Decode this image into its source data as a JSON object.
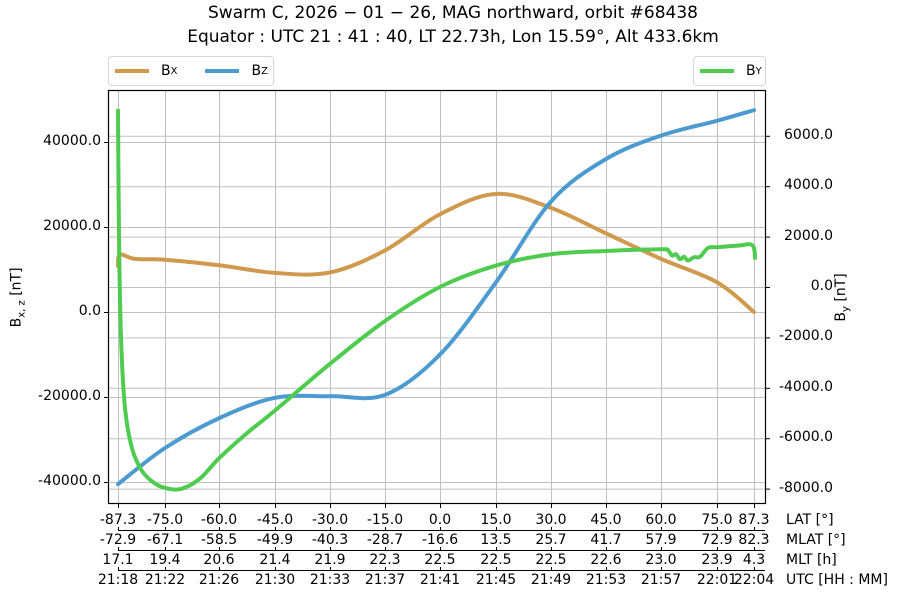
{
  "title": {
    "line1": "Swarm C,  2026 − 01 − 26,  MAG northward,  orbit #68438",
    "line2": "Equator :  UTC 21 : 41 : 40,  LT 22.73h,  Lon 15.59°,  Alt 433.6km"
  },
  "legend_left": [
    {
      "label": "B",
      "sub": "X",
      "color": "#d09a4e"
    },
    {
      "label": "B",
      "sub": "Z",
      "color": "#4b9bd0"
    }
  ],
  "legend_right": [
    {
      "label": "B",
      "sub": "Y",
      "color": "#4fcc4f"
    }
  ],
  "axes": {
    "left_label": "B",
    "left_label_sub": "x, z",
    "left_label_unit": " [nT]",
    "right_label": "B",
    "right_label_sub": "y",
    "right_label_unit": " [nT]",
    "left_ticks": [
      "40000.0",
      "20000.0",
      "0.0",
      "-20000.0",
      "-40000.0"
    ],
    "right_ticks": [
      "6000.0",
      "4000.0",
      "2000.0",
      "0.0",
      "-2000.0",
      "-4000.0",
      "-6000.0",
      "-8000.0"
    ]
  },
  "x_rows": {
    "lat": {
      "label": "LAT [°]",
      "values": [
        "-87.3",
        "-75.0",
        "-60.0",
        "-45.0",
        "-30.0",
        "-15.0",
        "0.0",
        "15.0",
        "30.0",
        "45.0",
        "60.0",
        "75.0",
        "87.3"
      ]
    },
    "mlat": {
      "label": "MLAT [°]",
      "values": [
        "-72.9",
        "-67.1",
        "-58.5",
        "-49.9",
        "-40.3",
        "-28.7",
        "-16.6",
        "13.5",
        "25.7",
        "41.7",
        "57.9",
        "72.9",
        "82.3"
      ]
    },
    "mlt": {
      "label": "MLT [h]",
      "values": [
        "17.1",
        "19.4",
        "20.6",
        "21.4",
        "21.9",
        "22.3",
        "22.5",
        "22.5",
        "22.5",
        "22.6",
        "23.0",
        "23.9",
        "4.3"
      ]
    },
    "utc": {
      "label": "UTC [HH : MM]",
      "values": [
        "21:18",
        "21:22",
        "21:26",
        "21:30",
        "21:33",
        "21:37",
        "21:41",
        "21:45",
        "21:49",
        "21:53",
        "21:57",
        "22:01",
        "22:04"
      ]
    }
  },
  "chart_data": {
    "type": "line",
    "title": "Swarm C, 2026-01-26, MAG northward, orbit #68438 / Equator: UTC 21:41:40, LT 22.73h, Lon 15.59°, Alt 433.6km",
    "xlabel": "LAT [°] / MLAT [°] / MLT [h] / UTC [HH:MM]",
    "ylabel": "Bx,z [nT]",
    "ylabel_right": "By [nT]",
    "x": [
      -87.3,
      -75.0,
      -60.0,
      -45.0,
      -30.0,
      -15.0,
      0.0,
      15.0,
      30.0,
      45.0,
      60.0,
      75.0,
      87.3
    ],
    "ylim": [
      -45000,
      50000
    ],
    "ylim_right": [
      -8600,
      7800
    ],
    "grid": true,
    "legend_position": "top-left (Bx, Bz) / top-right (By)",
    "series": [
      {
        "name": "Bx",
        "axis": "left",
        "color": "#d09a4e",
        "values": [
          13000,
          12300,
          11000,
          9200,
          9300,
          14500,
          23000,
          27800,
          24500,
          18500,
          12500,
          7000,
          0
        ]
      },
      {
        "name": "Bz",
        "axis": "left",
        "color": "#4b9bd0",
        "values": [
          -40500,
          -32000,
          -25000,
          -20200,
          -19800,
          -19500,
          -10000,
          7000,
          26000,
          36000,
          41500,
          45000,
          47500
        ]
      },
      {
        "name": "By",
        "axis": "right",
        "color": "#4fcc4f",
        "values": [
          7000,
          -7600,
          -7200,
          -5000,
          -3100,
          -1400,
          0,
          900,
          1350,
          1450,
          1500,
          1600,
          1100
        ]
      }
    ]
  }
}
